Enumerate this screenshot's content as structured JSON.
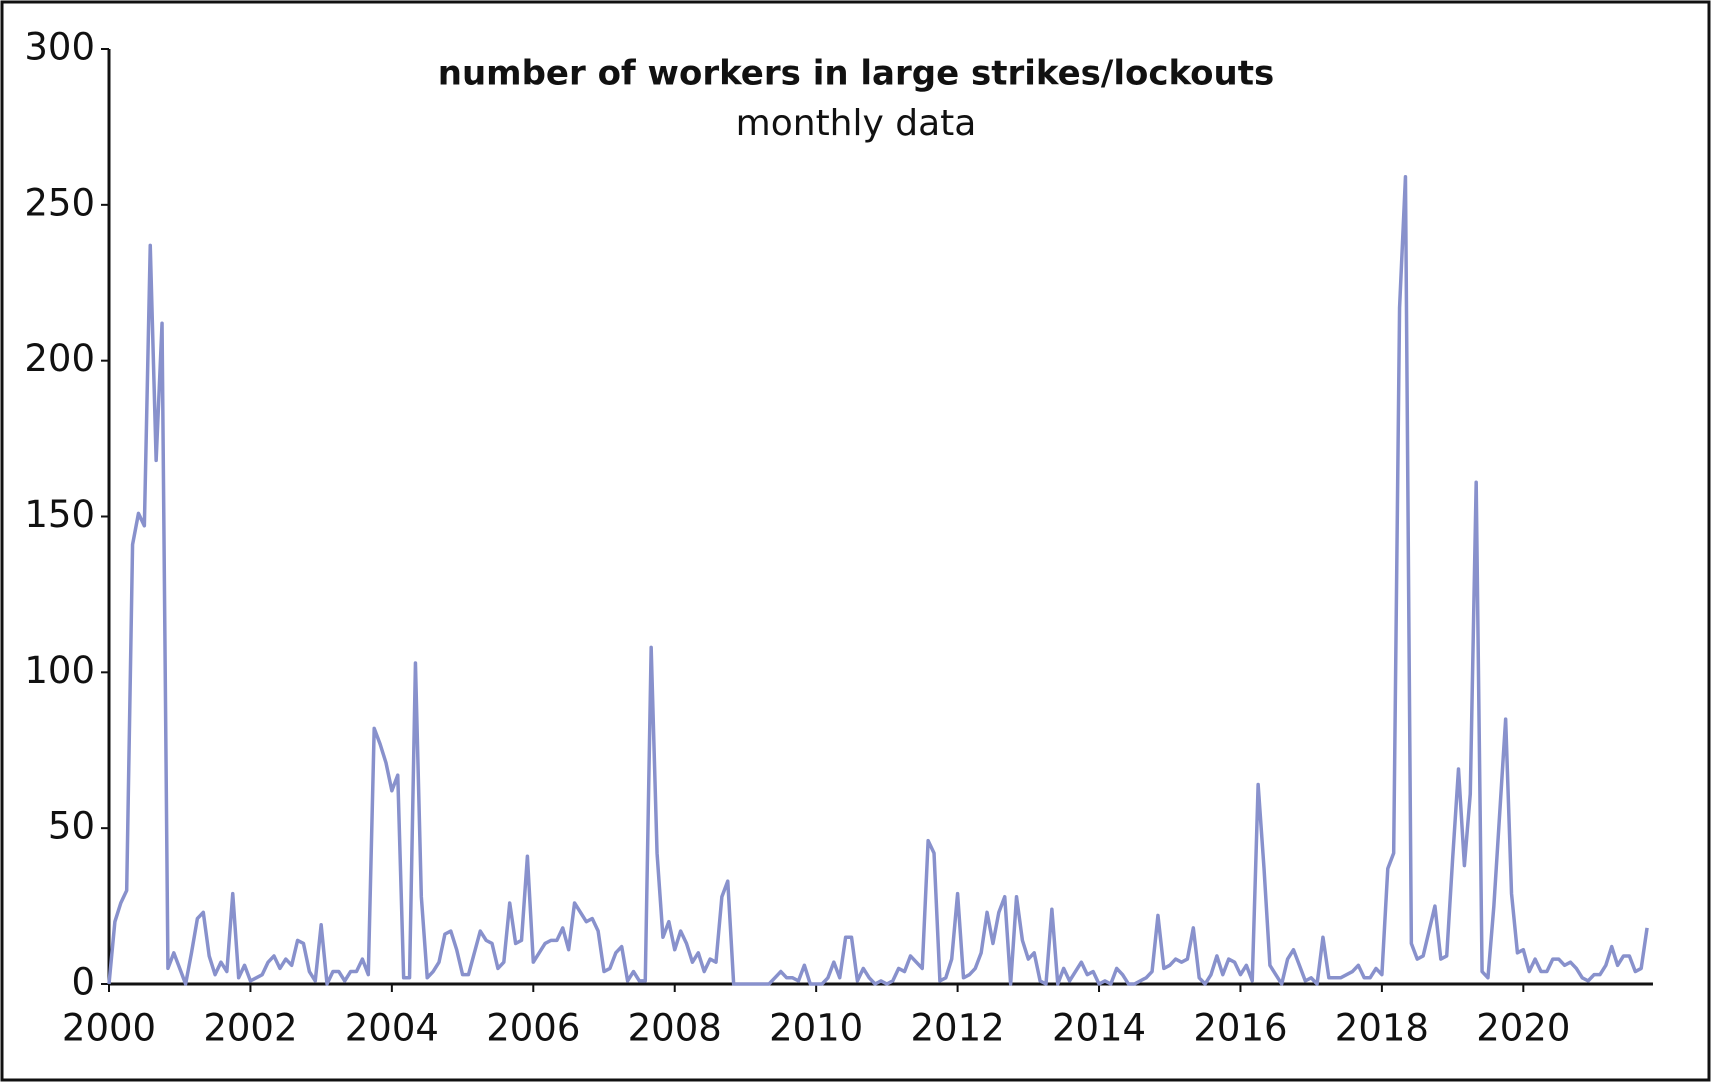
{
  "chart_data": {
    "type": "line",
    "title": "number of workers in large strikes/lockouts",
    "subtitle": "monthly data",
    "categories": [
      "2000",
      null,
      null,
      null,
      null,
      null,
      null,
      null,
      null,
      null,
      null,
      null,
      null,
      null,
      null,
      null,
      null,
      null,
      null,
      null,
      null,
      null,
      null,
      null,
      "2002",
      null,
      null,
      null,
      null,
      null,
      null,
      null,
      null,
      null,
      null,
      null,
      null,
      null,
      null,
      null,
      null,
      null,
      null,
      null,
      null,
      null,
      null,
      null,
      "2004",
      null,
      null,
      null,
      null,
      null,
      null,
      null,
      null,
      null,
      null,
      null,
      null,
      null,
      null,
      null,
      null,
      null,
      null,
      null,
      null,
      null,
      null,
      null,
      "2006",
      null,
      null,
      null,
      null,
      null,
      null,
      null,
      null,
      null,
      null,
      null,
      null,
      null,
      null,
      null,
      null,
      null,
      null,
      null,
      null,
      null,
      null,
      null,
      "2008",
      null,
      null,
      null,
      null,
      null,
      null,
      null,
      null,
      null,
      null,
      null,
      null,
      null,
      null,
      null,
      null,
      null,
      null,
      null,
      null,
      null,
      null,
      null,
      "2010",
      null,
      null,
      null,
      null,
      null,
      null,
      null,
      null,
      null,
      null,
      null,
      null,
      null,
      null,
      null,
      null,
      null,
      null,
      null,
      null,
      null,
      null,
      null,
      "2012",
      null,
      null,
      null,
      null,
      null,
      null,
      null,
      null,
      null,
      null,
      null,
      null,
      null,
      null,
      null,
      null,
      null,
      null,
      null,
      null,
      null,
      null,
      null,
      "2014",
      null,
      null,
      null,
      null,
      null,
      null,
      null,
      null,
      null,
      null,
      null,
      null,
      null,
      null,
      null,
      null,
      null,
      null,
      null,
      null,
      null,
      null,
      null,
      "2016",
      null,
      null,
      null,
      null,
      null,
      null,
      null,
      null,
      null,
      null,
      null,
      null,
      null,
      null,
      null,
      null,
      null,
      null,
      null,
      null,
      null,
      null,
      null,
      "2018",
      null,
      null,
      null,
      null,
      null,
      null,
      null,
      null,
      null,
      null,
      null,
      null,
      null,
      null,
      null,
      null,
      null,
      null,
      null,
      null,
      null,
      null,
      null,
      "2020",
      null,
      null,
      null,
      null,
      null,
      null,
      null,
      null,
      null,
      null,
      null,
      null,
      null,
      null,
      null,
      null,
      null,
      null,
      null,
      null,
      null
    ],
    "values": [
      0,
      20,
      26,
      30,
      141,
      151,
      147,
      237,
      168,
      212,
      5,
      10,
      5,
      0,
      10,
      21,
      23,
      9,
      3,
      7,
      4,
      29,
      2,
      6,
      1,
      2,
      3,
      7,
      9,
      5,
      8,
      6,
      14,
      13,
      4,
      1,
      19,
      0,
      4,
      4,
      1,
      4,
      4,
      8,
      3,
      82,
      77,
      71,
      62,
      67,
      2,
      2,
      103,
      28,
      2,
      4,
      7,
      16,
      17,
      11,
      3,
      3,
      10,
      17,
      14,
      13,
      5,
      7,
      26,
      13,
      14,
      41,
      7,
      10,
      13,
      14,
      14,
      18,
      11,
      26,
      23,
      20,
      21,
      17,
      4,
      5,
      10,
      12,
      1,
      4,
      1,
      1,
      108,
      42,
      15,
      20,
      11,
      17,
      13,
      7,
      10,
      4,
      8,
      7,
      28,
      33,
      0,
      0,
      0,
      0,
      0,
      0,
      0,
      2,
      4,
      2,
      2,
      1,
      6,
      0,
      0,
      0,
      2,
      7,
      2,
      15,
      15,
      1,
      5,
      2,
      0,
      1,
      0,
      1,
      5,
      4,
      9,
      7,
      5,
      46,
      42,
      1,
      2,
      8,
      29,
      2,
      3,
      5,
      10,
      23,
      13,
      23,
      28,
      0,
      28,
      14,
      8,
      10,
      1,
      0,
      24,
      0,
      5,
      1,
      4,
      7,
      3,
      4,
      0,
      1,
      0,
      5,
      3,
      0,
      0,
      1,
      2,
      4,
      22,
      5,
      6,
      8,
      7,
      8,
      18,
      2,
      0,
      3,
      9,
      3,
      8,
      7,
      3,
      6,
      1,
      64,
      37,
      6,
      3,
      0,
      8,
      11,
      6,
      1,
      2,
      0,
      15,
      2,
      2,
      2,
      3,
      4,
      6,
      2,
      2,
      5,
      3,
      37,
      42,
      217,
      259,
      13,
      8,
      9,
      17,
      25,
      8,
      9,
      40,
      69,
      38,
      61,
      161,
      4,
      2,
      25,
      55,
      85,
      29,
      10,
      11,
      4,
      8,
      4,
      4,
      8,
      8,
      6,
      7,
      5,
      2,
      1,
      3,
      3,
      6,
      12,
      6,
      9,
      9,
      4,
      5,
      18
    ],
    "color": "#8891cc",
    "ylim": [
      0,
      300
    ],
    "yticks": [
      0,
      50,
      100,
      150,
      200,
      250,
      300
    ]
  }
}
